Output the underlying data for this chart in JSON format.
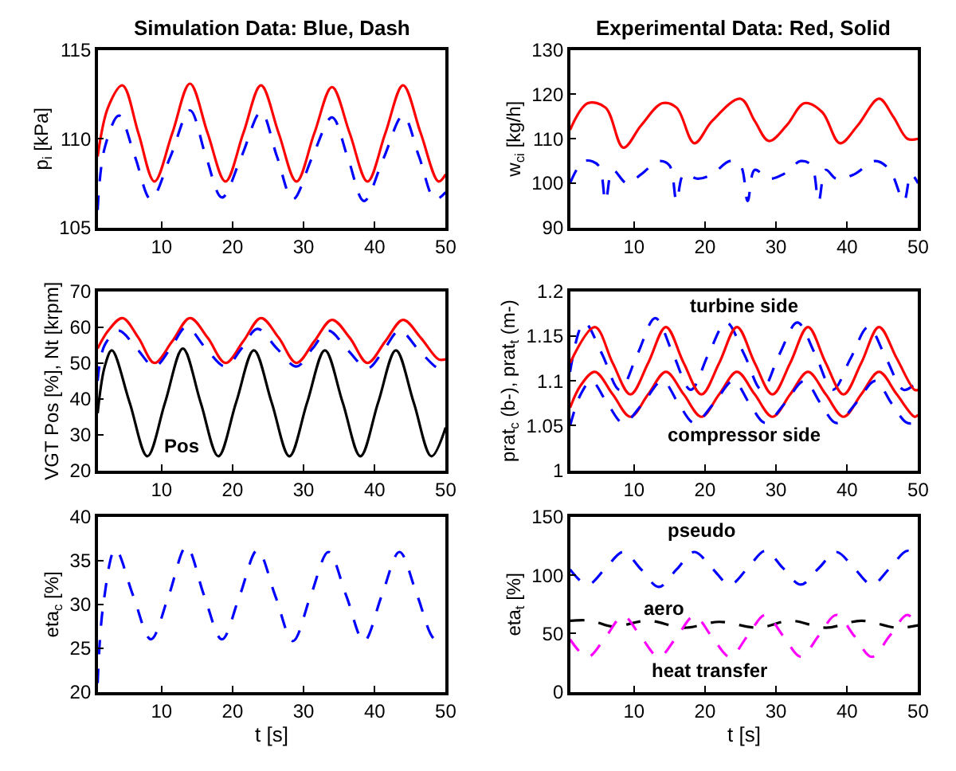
{
  "chart_data": [
    {
      "type": "line",
      "title": "Simulation Data: Blue, Dash",
      "ylabel": "p$_{i}$ [kPa]",
      "xlim": [
        1,
        50
      ],
      "xticks": [
        10,
        20,
        30,
        40,
        50
      ],
      "ylim": [
        105,
        115
      ],
      "yticks": [
        105,
        110,
        115
      ],
      "series": [
        {
          "color": "#ff0000",
          "line_style": "solid",
          "x": [
            1,
            2.5,
            4.5,
            6.75,
            9,
            11.5,
            14,
            16.5,
            19,
            21.5,
            24,
            26.5,
            29,
            31.5,
            34,
            36.5,
            39,
            41.5,
            44,
            46.5,
            49,
            50
          ],
          "values": [
            109,
            111.8,
            113,
            110.3,
            107.6,
            110.3,
            113.1,
            110.3,
            107.6,
            110.3,
            113,
            110.3,
            107.6,
            110.3,
            112.9,
            110.3,
            107.6,
            110.3,
            113,
            110.3,
            107.6,
            108
          ]
        },
        {
          "color": "#0000ff",
          "line_style": "dashed",
          "x": [
            1,
            2,
            4,
            6.25,
            8.5,
            11.25,
            14,
            16.25,
            18.5,
            21.25,
            24,
            26.25,
            28.5,
            31.25,
            34,
            36.25,
            38.5,
            41.25,
            44,
            46.25,
            48.5,
            50
          ],
          "values": [
            106,
            109.5,
            111.3,
            109,
            106.6,
            109,
            111.6,
            109,
            106.7,
            109,
            111.5,
            109,
            106.6,
            109,
            111.2,
            108.9,
            106.5,
            108.9,
            111.3,
            109,
            106.6,
            107
          ]
        }
      ]
    },
    {
      "type": "line",
      "title": "Experimental Data: Red, Solid",
      "ylabel": "w$_{ci}$ [kg/h]",
      "xlim": [
        1,
        50
      ],
      "xticks": [
        10,
        20,
        30,
        40,
        50
      ],
      "ylim": [
        90,
        130
      ],
      "yticks": [
        90,
        100,
        110,
        120,
        130
      ],
      "series": [
        {
          "color": "#ff0000",
          "line_style": "solid",
          "x": [
            1,
            3.5,
            6,
            8.5,
            11,
            14,
            16,
            18.5,
            21,
            25,
            27,
            29,
            31.5,
            34,
            36.5,
            39,
            41.5,
            44.5,
            46.5,
            48.5,
            50
          ],
          "values": [
            112,
            118,
            117,
            108,
            113,
            118,
            117,
            109,
            114,
            119,
            114,
            109.5,
            113,
            118,
            116,
            109,
            113,
            119,
            115,
            110,
            110
          ]
        },
        {
          "color": "#0000ff",
          "line_style": "dashed",
          "x": [
            1,
            3,
            5,
            6,
            7,
            9,
            11,
            13.5,
            15,
            16,
            17,
            19,
            21,
            23.5,
            25,
            26,
            27,
            29,
            31,
            33.5,
            35,
            36,
            37,
            38.5,
            41,
            44,
            46,
            48,
            49,
            50
          ],
          "values": [
            100,
            105,
            104,
            96,
            103,
            100,
            102,
            105,
            104,
            96,
            102,
            101,
            102,
            105,
            104,
            96,
            103,
            101,
            102,
            105,
            104,
            96,
            103,
            101,
            102,
            105,
            103,
            96,
            102,
            100
          ]
        }
      ]
    },
    {
      "type": "line",
      "ylabel": "VGT Pos [%], Nt [krpm]",
      "xlim": [
        1,
        50
      ],
      "xticks": [
        10,
        20,
        30,
        40,
        50
      ],
      "ylim": [
        20,
        70
      ],
      "yticks": [
        20,
        30,
        40,
        50,
        60,
        70
      ],
      "annotations": [
        "Pos"
      ],
      "series": [
        {
          "color": "#ff0000",
          "line_style": "solid",
          "x": [
            1,
            2.5,
            4.5,
            6.75,
            9,
            11.5,
            14,
            16.5,
            19,
            21.5,
            24,
            26.5,
            29,
            31.5,
            34,
            36.5,
            39,
            41.5,
            44,
            46.5,
            49,
            50
          ],
          "values": [
            54,
            59,
            62.5,
            57,
            50,
            56,
            62.5,
            57,
            50,
            56,
            62.5,
            57,
            50,
            56,
            62,
            57,
            50,
            56,
            62,
            57,
            51,
            51
          ]
        },
        {
          "color": "#0000ff",
          "line_style": "dashed",
          "x": [
            1,
            2,
            4,
            6.5,
            9,
            11.25,
            13.5,
            16.25,
            19,
            21.25,
            23.5,
            26.25,
            29,
            31.25,
            33.5,
            36.25,
            39,
            41.25,
            43.5,
            46.25,
            49,
            50
          ],
          "values": [
            45,
            55,
            59,
            54,
            49,
            54,
            60,
            54,
            49,
            54,
            59.5,
            54,
            49,
            54,
            59,
            53.5,
            48.5,
            53.5,
            59,
            53.5,
            48.5,
            49
          ]
        },
        {
          "color": "#000000",
          "line_style": "solid",
          "x": [
            1,
            2,
            3,
            5.5,
            8,
            10.5,
            13,
            15.5,
            18,
            20.5,
            23,
            25.5,
            28,
            30.5,
            33,
            35.5,
            38,
            40.5,
            43,
            45.5,
            48,
            50
          ],
          "values": [
            36,
            49,
            53.5,
            39,
            24,
            39,
            54,
            39,
            24,
            39,
            53.5,
            39,
            24,
            39,
            53.5,
            39,
            24,
            39,
            53.5,
            39,
            24,
            32
          ]
        }
      ]
    },
    {
      "type": "line",
      "ylabel": "prat$_{c}$ (b-), prat$_{t}$ (m-)",
      "xlim": [
        1,
        50
      ],
      "xticks": [
        10,
        20,
        30,
        40,
        50
      ],
      "ylim": [
        1,
        1.2
      ],
      "yticks": [
        1,
        1.05,
        1.1,
        1.15,
        1.2
      ],
      "annotations": [
        "turbine side",
        "compressor side"
      ],
      "series": [
        {
          "color": "#0000ff",
          "line_style": "dashed",
          "x": [
            1,
            3,
            5.5,
            8,
            10.5,
            13,
            15.5,
            18,
            20.5,
            23,
            25.5,
            28,
            30.5,
            33,
            35.5,
            38,
            40.5,
            43,
            45.5,
            48,
            50
          ],
          "values": [
            1.11,
            1.165,
            1.13,
            1.09,
            1.13,
            1.17,
            1.13,
            1.09,
            1.13,
            1.165,
            1.13,
            1.09,
            1.13,
            1.165,
            1.13,
            1.09,
            1.125,
            1.16,
            1.125,
            1.09,
            1.1
          ]
        },
        {
          "color": "#ff0000",
          "line_style": "solid",
          "x": [
            1,
            4.5,
            7,
            9.5,
            12,
            14.5,
            17,
            19.5,
            22,
            24.5,
            27,
            29.5,
            32,
            34.5,
            37,
            39.5,
            42,
            44.5,
            47,
            49.5,
            50
          ],
          "values": [
            1.12,
            1.16,
            1.12,
            1.085,
            1.12,
            1.16,
            1.12,
            1.085,
            1.12,
            1.16,
            1.12,
            1.085,
            1.12,
            1.16,
            1.12,
            1.085,
            1.12,
            1.16,
            1.125,
            1.09,
            1.09
          ]
        },
        {
          "color": "#ff0000",
          "line_style": "solid",
          "x": [
            1,
            2.5,
            4.5,
            7,
            9.5,
            12,
            14.5,
            17,
            19.5,
            22,
            24.5,
            27,
            29.5,
            32,
            34.5,
            37,
            39.5,
            42,
            44.5,
            47,
            49.5,
            50
          ],
          "values": [
            1.07,
            1.095,
            1.11,
            1.085,
            1.06,
            1.085,
            1.11,
            1.085,
            1.06,
            1.085,
            1.11,
            1.085,
            1.06,
            1.085,
            1.11,
            1.085,
            1.06,
            1.085,
            1.11,
            1.085,
            1.06,
            1.062
          ]
        },
        {
          "color": "#0000ff",
          "line_style": "dashed",
          "x": [
            1,
            2.5,
            4,
            6.25,
            8.5,
            11.25,
            14,
            16.25,
            18.5,
            21.25,
            24,
            26.25,
            28.5,
            31.25,
            34,
            36.25,
            38.5,
            41.25,
            44,
            46.25,
            48.5,
            50
          ],
          "values": [
            1.05,
            1.085,
            1.1,
            1.075,
            1.053,
            1.075,
            1.1,
            1.075,
            1.053,
            1.075,
            1.1,
            1.075,
            1.053,
            1.075,
            1.1,
            1.075,
            1.053,
            1.075,
            1.1,
            1.075,
            1.053,
            1.055
          ]
        }
      ]
    },
    {
      "type": "line",
      "xlabel": "t [s]",
      "ylabel": "eta$_{c}$ [%]",
      "xlim": [
        1,
        50
      ],
      "xticks": [
        10,
        20,
        30,
        40,
        50
      ],
      "ylim": [
        20,
        40
      ],
      "yticks": [
        20,
        25,
        30,
        35,
        40
      ],
      "series": [
        {
          "color": "#0000ff",
          "line_style": "dashed",
          "x": [
            1,
            1.8,
            3.5,
            6,
            8.5,
            11,
            13.5,
            16,
            18.5,
            21,
            23.5,
            26,
            28.5,
            31,
            33.5,
            36,
            38.5,
            41,
            43.5,
            46,
            48.5,
            50
          ],
          "values": [
            21,
            30,
            36.3,
            31,
            26,
            31,
            36.6,
            31,
            26,
            31,
            36.2,
            31,
            25.8,
            31,
            36,
            31,
            25.8,
            31,
            36,
            31,
            26,
            26.5
          ]
        }
      ]
    },
    {
      "type": "line",
      "xlabel": "t [s]",
      "ylabel": "eta$_{t}$ [%]",
      "xlim": [
        1,
        50
      ],
      "xticks": [
        10,
        20,
        30,
        40,
        50
      ],
      "ylim": [
        0,
        150
      ],
      "yticks": [
        0,
        50,
        100,
        150
      ],
      "annotations": [
        "pseudo",
        "aero",
        "heat transfer"
      ],
      "series": [
        {
          "color": "#0000ff",
          "line_style": "dashed",
          "x": [
            1,
            3.5,
            6,
            8.5,
            11,
            13.5,
            16,
            18.5,
            21,
            23.5,
            26,
            28.5,
            31,
            33.5,
            36,
            38.5,
            41,
            43.5,
            46,
            48.5,
            50
          ],
          "values": [
            105,
            92,
            106,
            120,
            105,
            90,
            105,
            120,
            106,
            92,
            106,
            121,
            106,
            92,
            106,
            120,
            106,
            92,
            106,
            121,
            113
          ]
        },
        {
          "color": "#000000",
          "line_style": "dashed",
          "x": [
            1,
            4,
            7,
            12,
            17,
            22,
            27.5,
            32,
            37,
            42,
            47,
            50
          ],
          "values": [
            61,
            61,
            56,
            61,
            55,
            60,
            55,
            61,
            55,
            61,
            55,
            57
          ]
        },
        {
          "color": "#ff00ff",
          "line_style": "dashed",
          "x": [
            1,
            3.5,
            6,
            8.5,
            11,
            13.5,
            16,
            18.5,
            21,
            23.5,
            26,
            28.5,
            31,
            33.5,
            36,
            38.5,
            41,
            43.5,
            46,
            48.5,
            50
          ],
          "values": [
            45,
            30,
            47,
            65,
            47,
            30,
            47,
            65,
            47,
            30,
            48,
            66,
            48,
            30,
            48,
            66,
            48,
            30,
            48,
            66,
            55
          ]
        }
      ]
    }
  ]
}
